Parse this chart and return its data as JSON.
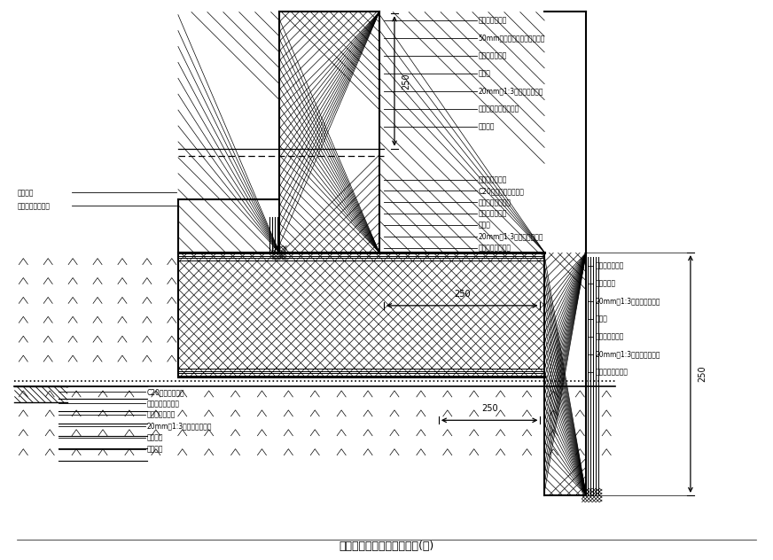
{
  "title": "底板、侧墙防水节点大样图(一)",
  "bg_color": "#ffffff",
  "figsize": [
    8.72,
    6.32
  ],
  "dpi": 100,
  "labels_top_right": [
    "钢筋土合层养实",
    "50mm厚聚苯乙烯泡沫软保护层",
    "防水卷材防水层",
    "附加层",
    "20mm厚1:3水泥砂浆找平层",
    "结构自防水混凝土侧墙",
    "防水涂料"
  ],
  "labels_wall_left_junction": [
    "钢筋土合层养实",
    "C20细石混凝土保护层",
    "一道土工布隔离层",
    "防水卷材防水层",
    "附加层",
    "20mm厚1:3水泥砂浆找平层",
    "钢筋砼自防水底板"
  ],
  "labels_right_wall": [
    "钢筋土合层养实",
    "永久消明缝",
    "20mm厚1:3水泥砂浆找平层",
    "附加层",
    "防水卷材防水层",
    "20mm厚1:3水泥砂浆保护层",
    "钢筋砼自防水底板"
  ],
  "labels_floor_bottom": [
    "C20细石砼保护层",
    "一道土工布隔离层",
    "防水卷材防水层",
    "20mm厚1:3水泥砂浆找平层",
    "素砼垫层",
    "素土夯实"
  ],
  "labels_left_wall": [
    "防水涂料",
    "钢筋砼自防水底板"
  ],
  "dim_250_top": "250",
  "dim_250_mid": "250",
  "dim_250_bottom": "250",
  "dim_250_right": "250"
}
